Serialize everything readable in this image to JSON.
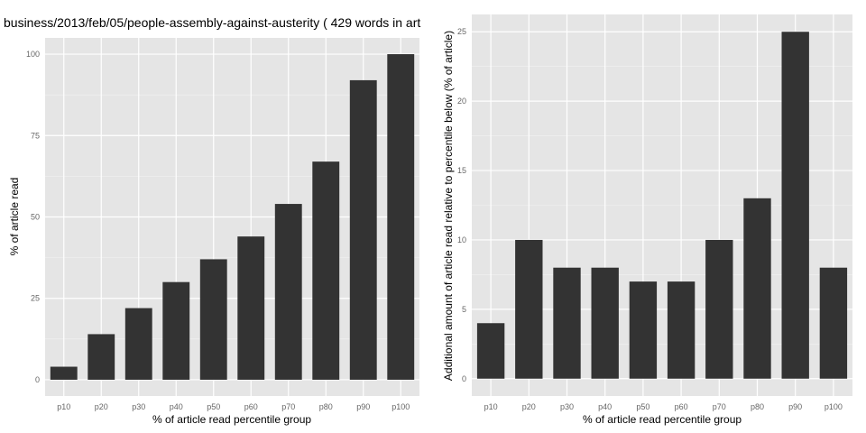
{
  "colors": {
    "panel_bg": "#e5e5e5",
    "grid_major": "#ffffff",
    "grid_minor": "#f2f2f2",
    "bar": "#333333",
    "tick_text": "#666666"
  },
  "chart_data": [
    {
      "type": "bar",
      "title": "business/2013/feb/05/people-assembly-against-austerity ( 429 words in art",
      "xlabel": "% of article read percentile group",
      "ylabel": "% of article read",
      "categories": [
        "p10",
        "p20",
        "p30",
        "p40",
        "p50",
        "p60",
        "p70",
        "p80",
        "p90",
        "p100"
      ],
      "values": [
        4,
        14,
        22,
        30,
        37,
        44,
        54,
        67,
        92,
        100
      ],
      "ylim": [
        -5,
        105
      ],
      "yticks": [
        0,
        25,
        50,
        75,
        100
      ],
      "grid": true
    },
    {
      "type": "bar",
      "title": "",
      "xlabel": "% of article read percentile group",
      "ylabel": "Additional amount of article read relative to percentile below (% of article)",
      "categories": [
        "p10",
        "p20",
        "p30",
        "p40",
        "p50",
        "p60",
        "p70",
        "p80",
        "p90",
        "p100"
      ],
      "values": [
        4,
        10,
        8,
        8,
        7,
        7,
        10,
        13,
        25,
        8
      ],
      "ylim": [
        -1.25,
        26.25
      ],
      "yticks": [
        0,
        5,
        10,
        15,
        20,
        25
      ],
      "grid": true
    }
  ]
}
